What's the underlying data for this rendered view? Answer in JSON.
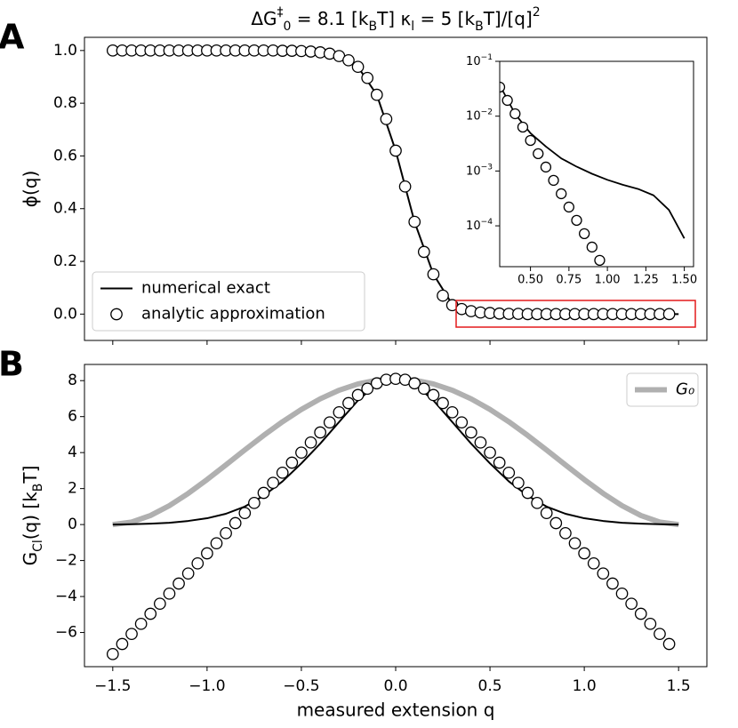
{
  "chart_data": [
    {
      "type": "line",
      "panel_label": "A",
      "title": [
        {
          "text": "ΔG"
        },
        {
          "text": "‡",
          "script": "sup"
        },
        {
          "text": "0",
          "script": "sub"
        },
        {
          "text": " = 8.1 [k"
        },
        {
          "text": "B",
          "script": "sub"
        },
        {
          "text": "T]  κ"
        },
        {
          "text": "l",
          "script": "sub"
        },
        {
          "text": " = 5 [k"
        },
        {
          "text": "B",
          "script": "sub"
        },
        {
          "text": "T]/[q]"
        },
        {
          "text": "2",
          "script": "sup"
        }
      ],
      "ylabel": [
        {
          "text": "ϕ(q)"
        }
      ],
      "xlim": [
        -1.65,
        1.65
      ],
      "ylim": [
        -0.1,
        1.05
      ],
      "xticks": [
        -1.5,
        -1,
        -0.5,
        0,
        0.5,
        1,
        1.5
      ],
      "xtick_labels": false,
      "yticks": [
        {
          "value": 0,
          "label": "0.0"
        },
        0.2,
        0.4,
        0.6,
        0.8,
        {
          "value": 1,
          "label": "1.0"
        }
      ],
      "legend": "lower left",
      "series": [
        {
          "name": "numerical exact",
          "kind": "line",
          "color": "#000000",
          "x": [
            -1.5,
            -1.4,
            -1.3,
            -1.2,
            -1.1,
            -1,
            -0.9,
            -0.8,
            -0.7,
            -0.6,
            -0.5,
            -0.4,
            -0.3,
            -0.2,
            -0.1,
            0,
            0.1,
            0.2,
            0.3,
            0.4,
            0.5,
            0.6,
            0.7,
            0.8,
            0.9,
            1,
            1.1,
            1.2,
            1.3,
            1.4,
            1.5
          ],
          "values": [
            1,
            1,
            1,
            1,
            1,
            1,
            1,
            1,
            1,
            0.999,
            0.998,
            0.993,
            0.979,
            0.938,
            0.832,
            0.62,
            0.35,
            0.151,
            0.037,
            0.011,
            0.005,
            0.003,
            0.002,
            0.001,
            0.001,
            0.001,
            0.001,
            0,
            0,
            0,
            0
          ]
        },
        {
          "name": "analytic approximation",
          "kind": "markers",
          "color": "#000000",
          "x": [
            -1.5,
            -1.45,
            -1.4,
            -1.35,
            -1.3,
            -1.25,
            -1.2,
            -1.15,
            -1.1,
            -1.05,
            -1,
            -0.95,
            -0.9,
            -0.85,
            -0.8,
            -0.75,
            -0.7,
            -0.65,
            -0.6,
            -0.55,
            -0.5,
            -0.45,
            -0.4,
            -0.35,
            -0.3,
            -0.25,
            -0.2,
            -0.15,
            -0.1,
            -0.05,
            0,
            0.05,
            0.1,
            0.15,
            0.2,
            0.25,
            0.3,
            0.35,
            0.4,
            0.45,
            0.5,
            0.55,
            0.6,
            0.65,
            0.7,
            0.75,
            0.8,
            0.85,
            0.9,
            0.95,
            1,
            1.05,
            1.1,
            1.15,
            1.2,
            1.25,
            1.3,
            1.35,
            1.4,
            1.45
          ],
          "values": [
            1,
            1,
            1,
            1,
            1,
            1,
            1,
            1,
            1,
            1,
            1,
            1,
            1,
            1,
            1,
            1,
            1,
            1,
            0.999,
            0.999,
            0.998,
            0.996,
            0.993,
            0.988,
            0.979,
            0.963,
            0.938,
            0.896,
            0.832,
            0.74,
            0.62,
            0.484,
            0.35,
            0.236,
            0.151,
            0.07,
            0.034,
            0.019,
            0.011,
            0.006,
            0.004,
            0.002,
            0.001,
            0.001,
            0,
            0,
            0,
            0,
            0,
            0,
            0,
            0,
            0,
            0,
            0,
            0,
            0,
            0,
            0,
            0
          ]
        }
      ]
    },
    {
      "type": "line",
      "log_scale": "y",
      "xlim": [
        0.3,
        1.56
      ],
      "ylim": [
        1.8e-05,
        0.1
      ],
      "xticks": [
        {
          "value": 0.5,
          "label": "0.50"
        },
        {
          "value": 0.75,
          "label": "0.75"
        },
        {
          "value": 1,
          "label": "1.00"
        },
        {
          "value": 1.25,
          "label": "1.25"
        },
        {
          "value": 1.5,
          "label": "1.50"
        }
      ],
      "yticks": [
        {
          "value": 0.0001,
          "label": "10",
          "exponent": "−4"
        },
        {
          "value": 0.001,
          "label": "10",
          "exponent": "−3"
        },
        {
          "value": 0.01,
          "label": "10",
          "exponent": "−2"
        },
        {
          "value": 0.1,
          "label": "10",
          "exponent": "−1"
        }
      ],
      "series": [
        {
          "kind": "line",
          "color": "#000000",
          "x": [
            0.3,
            0.4,
            0.5,
            0.6,
            0.7,
            0.8,
            0.9,
            1,
            1.1,
            1.2,
            1.3,
            1.4,
            1.5
          ],
          "values": [
            0.037,
            0.011,
            0.0049,
            0.0028,
            0.0017,
            0.0012,
            0.00089,
            0.00069,
            0.00056,
            0.00047,
            0.00036,
            0.000195,
            5.9e-05
          ]
        },
        {
          "kind": "markers",
          "color": "#000000",
          "x": [
            0.3,
            0.35,
            0.4,
            0.45,
            0.5,
            0.55,
            0.6,
            0.65,
            0.7,
            0.75,
            0.8,
            0.85,
            0.9,
            0.95
          ],
          "values": [
            0.0339,
            0.0194,
            0.01107,
            0.00632,
            0.00361,
            0.00207,
            0.00118,
            0.000675,
            0.000385,
            0.00022,
            0.000126,
            7.2e-05,
            4.1e-05,
            2.35e-05
          ]
        }
      ]
    },
    {
      "type": "line",
      "panel_label": "B",
      "ylabel": [
        {
          "text": "G"
        },
        {
          "text": "Cl",
          "script": "sub"
        },
        {
          "text": "(q) [k"
        },
        {
          "text": "B",
          "script": "sub"
        },
        {
          "text": "T]"
        }
      ],
      "xlabel": "measured extension q",
      "xlim": [
        -1.65,
        1.65
      ],
      "ylim": [
        -7.9,
        8.9
      ],
      "xticks": [
        {
          "value": -1.5,
          "label": "−1.5"
        },
        {
          "value": -1,
          "label": "−1.0"
        },
        {
          "value": -0.5,
          "label": "−0.5"
        },
        {
          "value": 0,
          "label": "0.0"
        },
        0.5,
        {
          "value": 1,
          "label": "1.0"
        },
        1.5
      ],
      "yticks": [
        {
          "value": -6,
          "label": "−6"
        },
        {
          "value": -4,
          "label": "−4"
        },
        {
          "value": -2,
          "label": "−2"
        },
        0,
        2,
        4,
        6,
        8
      ],
      "legend": "upper right",
      "series": [
        {
          "name": "G₀",
          "kind": "line",
          "color": "#b0b0b0",
          "width": 6,
          "x": [
            -1.5,
            -1.4,
            -1.3,
            -1.2,
            -1.1,
            -1,
            -0.9,
            -0.8,
            -0.7,
            -0.6,
            -0.5,
            -0.4,
            -0.3,
            -0.2,
            -0.1,
            0,
            0.1,
            0.2,
            0.3,
            0.4,
            0.5,
            0.6,
            0.7,
            0.8,
            0.9,
            1,
            1.1,
            1.2,
            1.3,
            1.4,
            1.5
          ],
          "values": [
            0,
            0.135,
            0.502,
            1.05,
            1.731,
            2.5,
            3.318,
            4.147,
            4.956,
            5.715,
            6.4,
            6.989,
            7.465,
            7.815,
            8.028,
            8.1,
            8.028,
            7.815,
            7.465,
            6.989,
            6.4,
            5.715,
            4.956,
            4.147,
            3.318,
            2.5,
            1.731,
            1.05,
            0.502,
            0.135,
            0
          ]
        },
        {
          "kind": "line",
          "color": "#000000",
          "x": [
            -1.5,
            -1.4,
            -1.3,
            -1.2,
            -1.1,
            -1,
            -0.9,
            -0.8,
            -0.7,
            -0.6,
            -0.5,
            -0.4,
            -0.3,
            -0.2,
            -0.1,
            0,
            0.1,
            0.2,
            0.3,
            0.4,
            0.5,
            0.6,
            0.7,
            0.8,
            0.9,
            1,
            1.1,
            1.2,
            1.3,
            1.4,
            1.5
          ],
          "values": [
            0,
            0.02,
            0.05,
            0.1,
            0.2,
            0.35,
            0.6,
            1,
            1.6,
            2.4,
            3.4,
            4.5,
            5.7,
            6.9,
            7.8,
            8.1,
            7.8,
            6.9,
            5.7,
            4.5,
            3.4,
            2.4,
            1.6,
            1,
            0.6,
            0.35,
            0.2,
            0.1,
            0.05,
            0.02,
            0
          ]
        },
        {
          "kind": "markers",
          "color": "#000000",
          "x": [
            -1.5,
            -1.45,
            -1.4,
            -1.35,
            -1.3,
            -1.25,
            -1.2,
            -1.15,
            -1.1,
            -1.05,
            -1,
            -0.95,
            -0.9,
            -0.85,
            -0.8,
            -0.75,
            -0.7,
            -0.65,
            -0.6,
            -0.55,
            -0.5,
            -0.45,
            -0.4,
            -0.35,
            -0.3,
            -0.25,
            -0.2,
            -0.15,
            -0.1,
            -0.05,
            0,
            0.05,
            0.1,
            0.15,
            0.2,
            0.25,
            0.3,
            0.35,
            0.4,
            0.45,
            0.5,
            0.55,
            0.6,
            0.65,
            0.7,
            0.75,
            0.8,
            0.85,
            0.9,
            0.95,
            1,
            1.05,
            1.1,
            1.15,
            1.2,
            1.25,
            1.3,
            1.35,
            1.4,
            1.45
          ],
          "values": [
            -7.2,
            -6.64,
            -6.08,
            -5.52,
            -4.96,
            -4.4,
            -3.84,
            -3.28,
            -2.72,
            -2.16,
            -1.6,
            -1.04,
            -0.48,
            0.08,
            0.64,
            1.2,
            1.76,
            2.32,
            2.88,
            3.44,
            4,
            4.56,
            5.12,
            5.68,
            6.24,
            6.75,
            7.2,
            7.55,
            7.85,
            8.05,
            8.1,
            8.05,
            7.85,
            7.55,
            7.2,
            6.75,
            6.24,
            5.68,
            5.12,
            4.56,
            4,
            3.44,
            2.88,
            2.32,
            1.76,
            1.2,
            0.64,
            0.08,
            -0.48,
            -1.04,
            -1.6,
            -2.16,
            -2.72,
            -3.28,
            -3.84,
            -4.4,
            -4.96,
            -5.52,
            -6.08,
            -6.64
          ]
        }
      ]
    }
  ]
}
